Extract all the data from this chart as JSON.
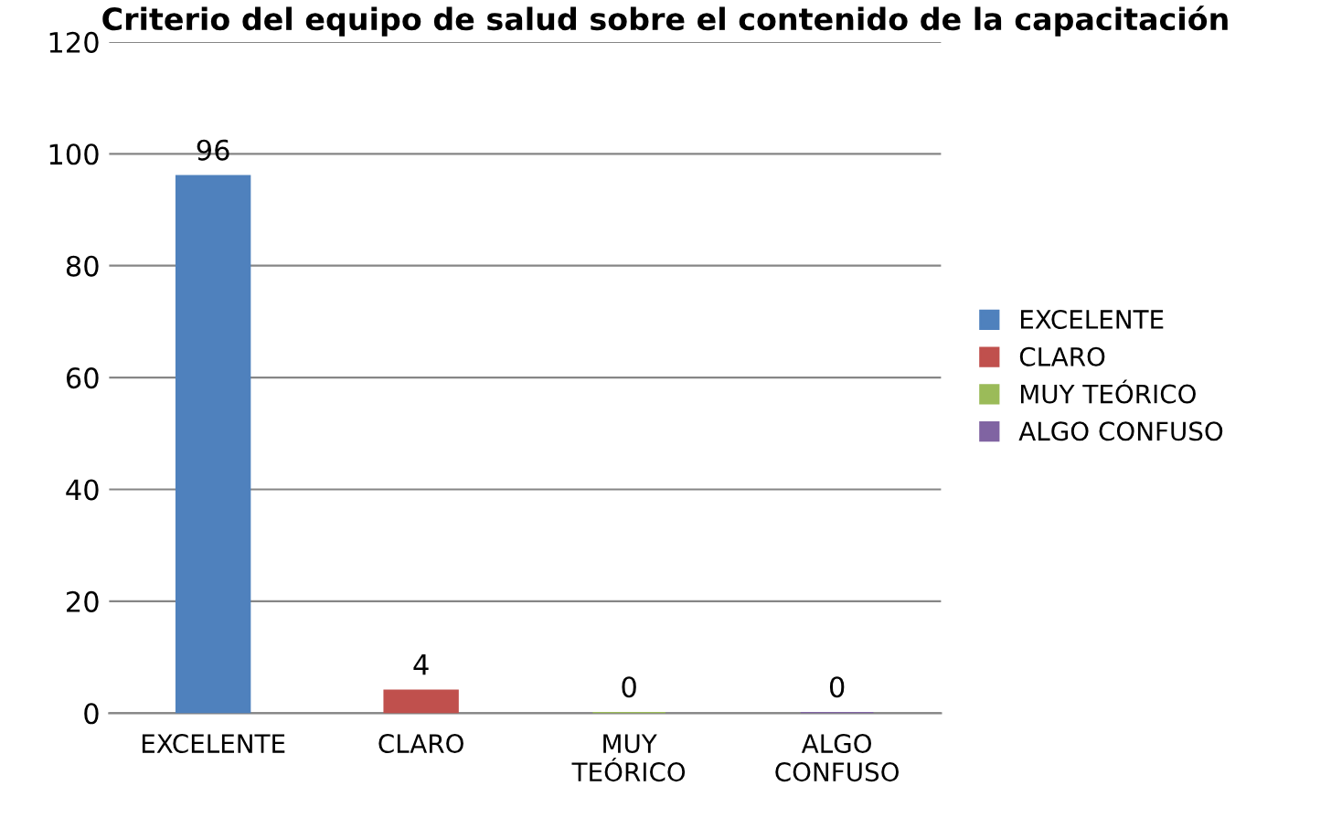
{
  "chart_data": {
    "type": "bar",
    "title": "Criterio del equipo de salud sobre el contenido de la capacitación",
    "categories": [
      "EXCELENTE",
      "CLARO",
      "MUY TEÓRICO",
      "ALGO CONFUSO"
    ],
    "series": [
      {
        "name": "EXCELENTE",
        "color": "#4f81bd",
        "values": [
          96,
          null,
          null,
          null
        ]
      },
      {
        "name": "CLARO",
        "color": "#c0504d",
        "values": [
          null,
          4,
          null,
          null
        ]
      },
      {
        "name": "MUY TEÓRICO",
        "color": "#9bbb59",
        "values": [
          null,
          null,
          0,
          null
        ]
      },
      {
        "name": "ALGO CONFUSO",
        "color": "#8064a2",
        "values": [
          null,
          null,
          null,
          0
        ]
      }
    ],
    "ylim": [
      0,
      120
    ],
    "yticks": [
      0,
      20,
      40,
      60,
      80,
      100,
      120
    ],
    "grid": "y",
    "legend": "right",
    "data_labels": true
  }
}
